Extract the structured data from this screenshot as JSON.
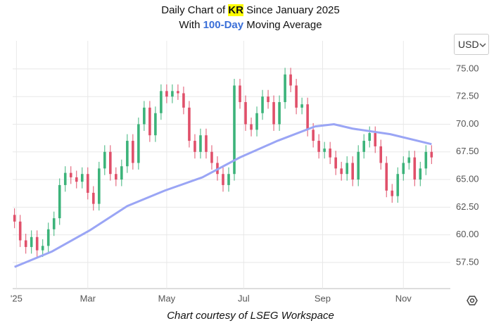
{
  "chart_data": {
    "type": "candlestick",
    "title": [
      "Daily Chart of ",
      "KR",
      " Since January 2025"
    ],
    "subtitle": [
      "With ",
      "100-Day",
      " Moving Average"
    ],
    "currency": "USD",
    "footer": "Chart courtesy of LSEG Workspace",
    "up_color": "#3cb37a",
    "down_color": "#e0506a",
    "ma_color": "#9aa5f5",
    "x": [
      0,
      3,
      6,
      9,
      12,
      15,
      18,
      21,
      24,
      27,
      30,
      33,
      36,
      39,
      42,
      45,
      48,
      51,
      54,
      57,
      60,
      63,
      66,
      69,
      72,
      75,
      78,
      81,
      84,
      87,
      90,
      93,
      96,
      99,
      102,
      105,
      108,
      111,
      114,
      117,
      120,
      123,
      126,
      129,
      132,
      135,
      138,
      141,
      144,
      147,
      150,
      153,
      156,
      159,
      162,
      165,
      168,
      171,
      174,
      177,
      180,
      183,
      186,
      189,
      192,
      195,
      198,
      201,
      204,
      207,
      210,
      213,
      216,
      219,
      222
    ],
    "open": [
      61.8,
      61.2,
      59.5,
      58.9,
      59.8,
      58.6,
      59.0,
      60.5,
      61.5,
      64.5,
      65.6,
      65.2,
      64.8,
      65.5,
      63.8,
      62.8,
      66.0,
      67.5,
      65.5,
      65.0,
      66.2,
      68.5,
      66.5,
      70.0,
      71.5,
      69.0,
      71.0,
      73.0,
      72.5,
      73.0,
      72.8,
      71.5,
      68.5,
      67.5,
      69.0,
      67.5,
      66.5,
      65.5,
      64.5,
      65.5,
      73.5,
      72.0,
      70.0,
      69.5,
      71.0,
      72.5,
      72.0,
      70.0,
      72.0,
      74.5,
      73.5,
      71.5,
      71.8,
      69.5,
      68.5,
      67.5,
      67.8,
      67.0,
      66.0,
      65.5,
      66.5,
      65.0,
      67.5,
      68.5,
      69.2,
      68.0,
      66.5,
      64.0,
      63.5,
      65.5,
      66.5,
      67.0,
      65.0,
      66.0,
      67.5
    ],
    "high": [
      62.4,
      61.8,
      60.1,
      60.4,
      60.4,
      59.6,
      61.1,
      62.1,
      65.1,
      66.2,
      66.2,
      65.8,
      66.1,
      66.1,
      64.4,
      66.6,
      68.1,
      68.1,
      66.1,
      66.8,
      69.1,
      69.1,
      70.6,
      72.1,
      72.1,
      71.6,
      73.6,
      73.6,
      73.6,
      73.6,
      73.4,
      72.1,
      69.1,
      69.6,
      69.6,
      68.1,
      67.1,
      66.1,
      66.1,
      74.1,
      74.1,
      72.6,
      70.6,
      71.6,
      73.1,
      73.1,
      72.6,
      72.6,
      75.1,
      75.1,
      74.1,
      72.4,
      72.4,
      70.1,
      69.1,
      68.4,
      68.4,
      67.6,
      66.6,
      67.1,
      67.1,
      68.1,
      69.1,
      69.8,
      69.8,
      68.6,
      67.1,
      64.6,
      66.1,
      67.1,
      67.6,
      67.6,
      66.6,
      68.1,
      68.1
    ],
    "low": [
      60.6,
      58.9,
      58.3,
      58.3,
      58.0,
      58.0,
      58.4,
      59.9,
      60.9,
      63.9,
      64.6,
      64.2,
      64.2,
      63.2,
      62.2,
      62.2,
      65.4,
      64.9,
      64.4,
      64.4,
      65.6,
      65.9,
      65.9,
      69.4,
      68.4,
      68.4,
      70.4,
      71.9,
      71.9,
      72.2,
      70.9,
      67.9,
      66.9,
      66.9,
      66.9,
      65.9,
      64.9,
      63.9,
      63.9,
      64.9,
      71.4,
      69.4,
      68.9,
      68.9,
      70.4,
      71.4,
      69.4,
      69.4,
      71.4,
      72.9,
      70.9,
      70.9,
      68.9,
      67.9,
      66.9,
      66.9,
      66.4,
      65.4,
      64.9,
      64.9,
      64.4,
      64.4,
      66.9,
      67.9,
      67.4,
      65.9,
      63.4,
      62.9,
      62.9,
      64.9,
      65.9,
      64.4,
      64.4,
      65.4,
      66.4
    ],
    "close": [
      61.2,
      59.5,
      58.9,
      59.8,
      58.6,
      59.0,
      60.5,
      61.5,
      64.5,
      65.6,
      65.2,
      64.8,
      65.5,
      63.8,
      62.8,
      66.0,
      67.5,
      65.5,
      65.0,
      66.2,
      68.5,
      66.5,
      70.0,
      71.5,
      69.0,
      71.0,
      73.0,
      72.5,
      73.0,
      72.8,
      71.5,
      68.5,
      67.5,
      69.0,
      67.5,
      66.5,
      65.5,
      64.5,
      65.5,
      73.5,
      72.0,
      70.0,
      69.5,
      71.0,
      72.5,
      72.0,
      70.0,
      72.0,
      74.5,
      73.5,
      71.5,
      71.8,
      69.5,
      68.5,
      67.5,
      67.8,
      67.0,
      66.0,
      65.5,
      66.5,
      65.0,
      67.5,
      68.5,
      69.2,
      68.0,
      66.5,
      64.0,
      63.5,
      65.5,
      66.5,
      67.0,
      65.0,
      66.0,
      67.5,
      67.0
    ],
    "ma_x": [
      0,
      20,
      40,
      60,
      80,
      100,
      120,
      140,
      160,
      170,
      180,
      200,
      222
    ],
    "ma_values": [
      57.1,
      58.5,
      60.4,
      62.6,
      64.0,
      65.2,
      67.0,
      68.5,
      69.8,
      70.0,
      69.6,
      69.1,
      68.2
    ],
    "xlim": [
      -1,
      232
    ],
    "xticks": [
      {
        "value": 1,
        "label": "'25"
      },
      {
        "value": 39,
        "label": "Mar"
      },
      {
        "value": 81,
        "label": "May"
      },
      {
        "value": 122,
        "label": "Jul"
      },
      {
        "value": 164,
        "label": "Sep"
      },
      {
        "value": 207,
        "label": "Nov"
      }
    ],
    "ylim": [
      55.14,
      77.54
    ],
    "yticks": [
      {
        "value": 57.5,
        "label": "57.50"
      },
      {
        "value": 60,
        "label": "60.00"
      },
      {
        "value": 62.5,
        "label": "62.50"
      },
      {
        "value": 65,
        "label": "65.00"
      },
      {
        "value": 67.5,
        "label": "67.50"
      },
      {
        "value": 70,
        "label": "70.00"
      },
      {
        "value": 72.5,
        "label": "72.50"
      },
      {
        "value": 75,
        "label": "75.00"
      }
    ],
    "grid": true
  }
}
